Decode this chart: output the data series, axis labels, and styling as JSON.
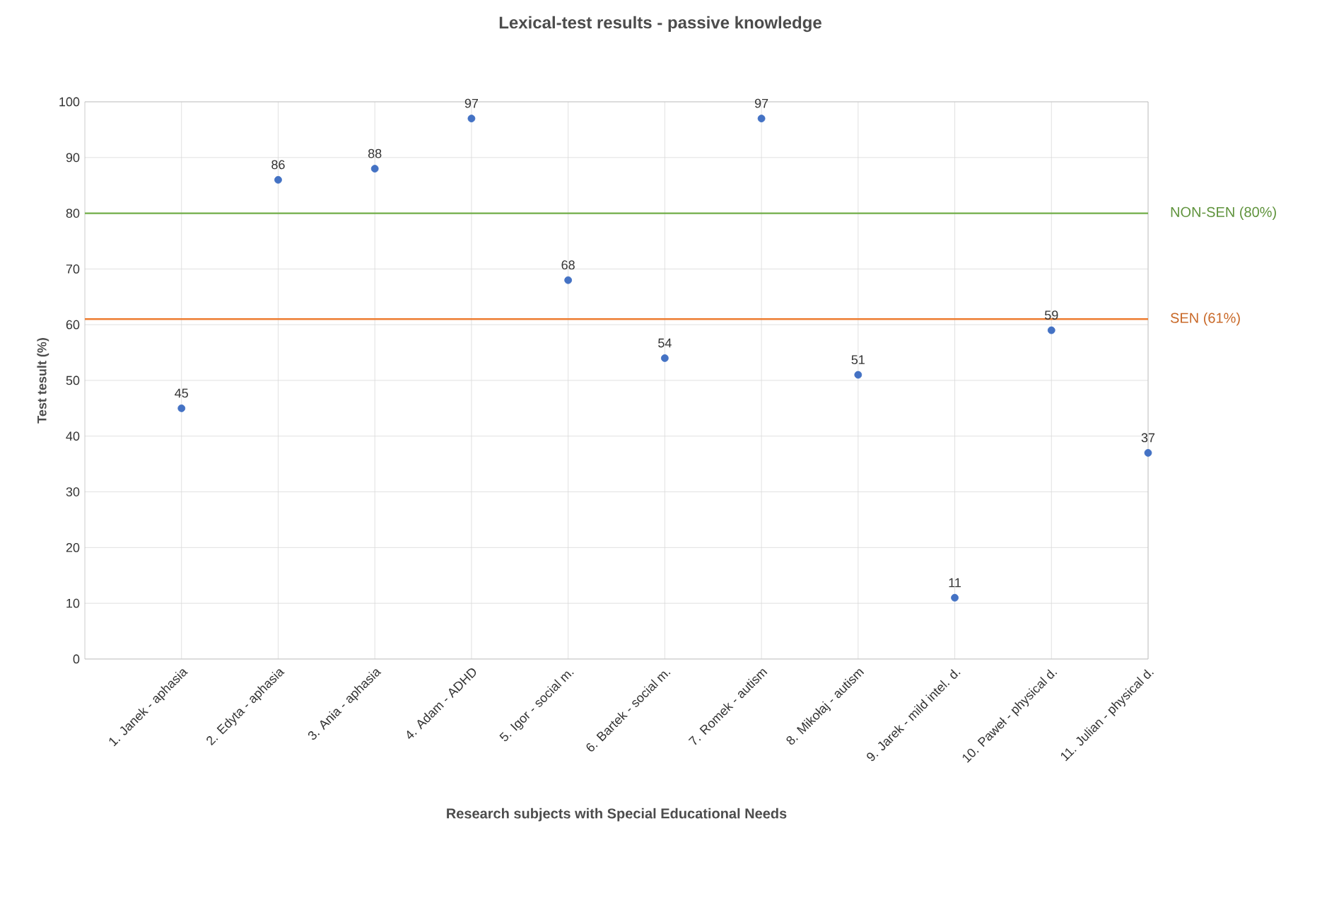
{
  "chart_data": {
    "type": "scatter",
    "title": "Lexical-test results - passive knowledge",
    "xlabel": "Research subjects with Special Educational Needs",
    "ylabel": "Test tesult (%)",
    "categories": [
      "1. Janek - aphasia",
      "2. Edyta - aphasia",
      "3. Ania - aphasia",
      "4. Adam - ADHD",
      "5. Igor - social m.",
      "6. Bartek - social m.",
      "7. Romek - autism",
      "8. Mikołaj - autism",
      "9. Jarek - mild intel. d.",
      "10. Paweł - physical d.",
      "11. Julian - physical d."
    ],
    "values": [
      45,
      86,
      88,
      97,
      68,
      54,
      97,
      51,
      11,
      59,
      37
    ],
    "color": "#4472c4",
    "ylim": [
      0,
      100
    ],
    "yticks": [
      0,
      10,
      20,
      30,
      40,
      50,
      60,
      70,
      80,
      90,
      100
    ],
    "grid": true,
    "marker": "circle",
    "data_labels": true,
    "ref_lines": [
      {
        "axis": "y",
        "value": 80,
        "label": "NON-SEN (80%)",
        "color": "#70ad47"
      },
      {
        "axis": "y",
        "value": 61,
        "label": "SEN (61%)",
        "color": "#ed7d31"
      }
    ]
  }
}
